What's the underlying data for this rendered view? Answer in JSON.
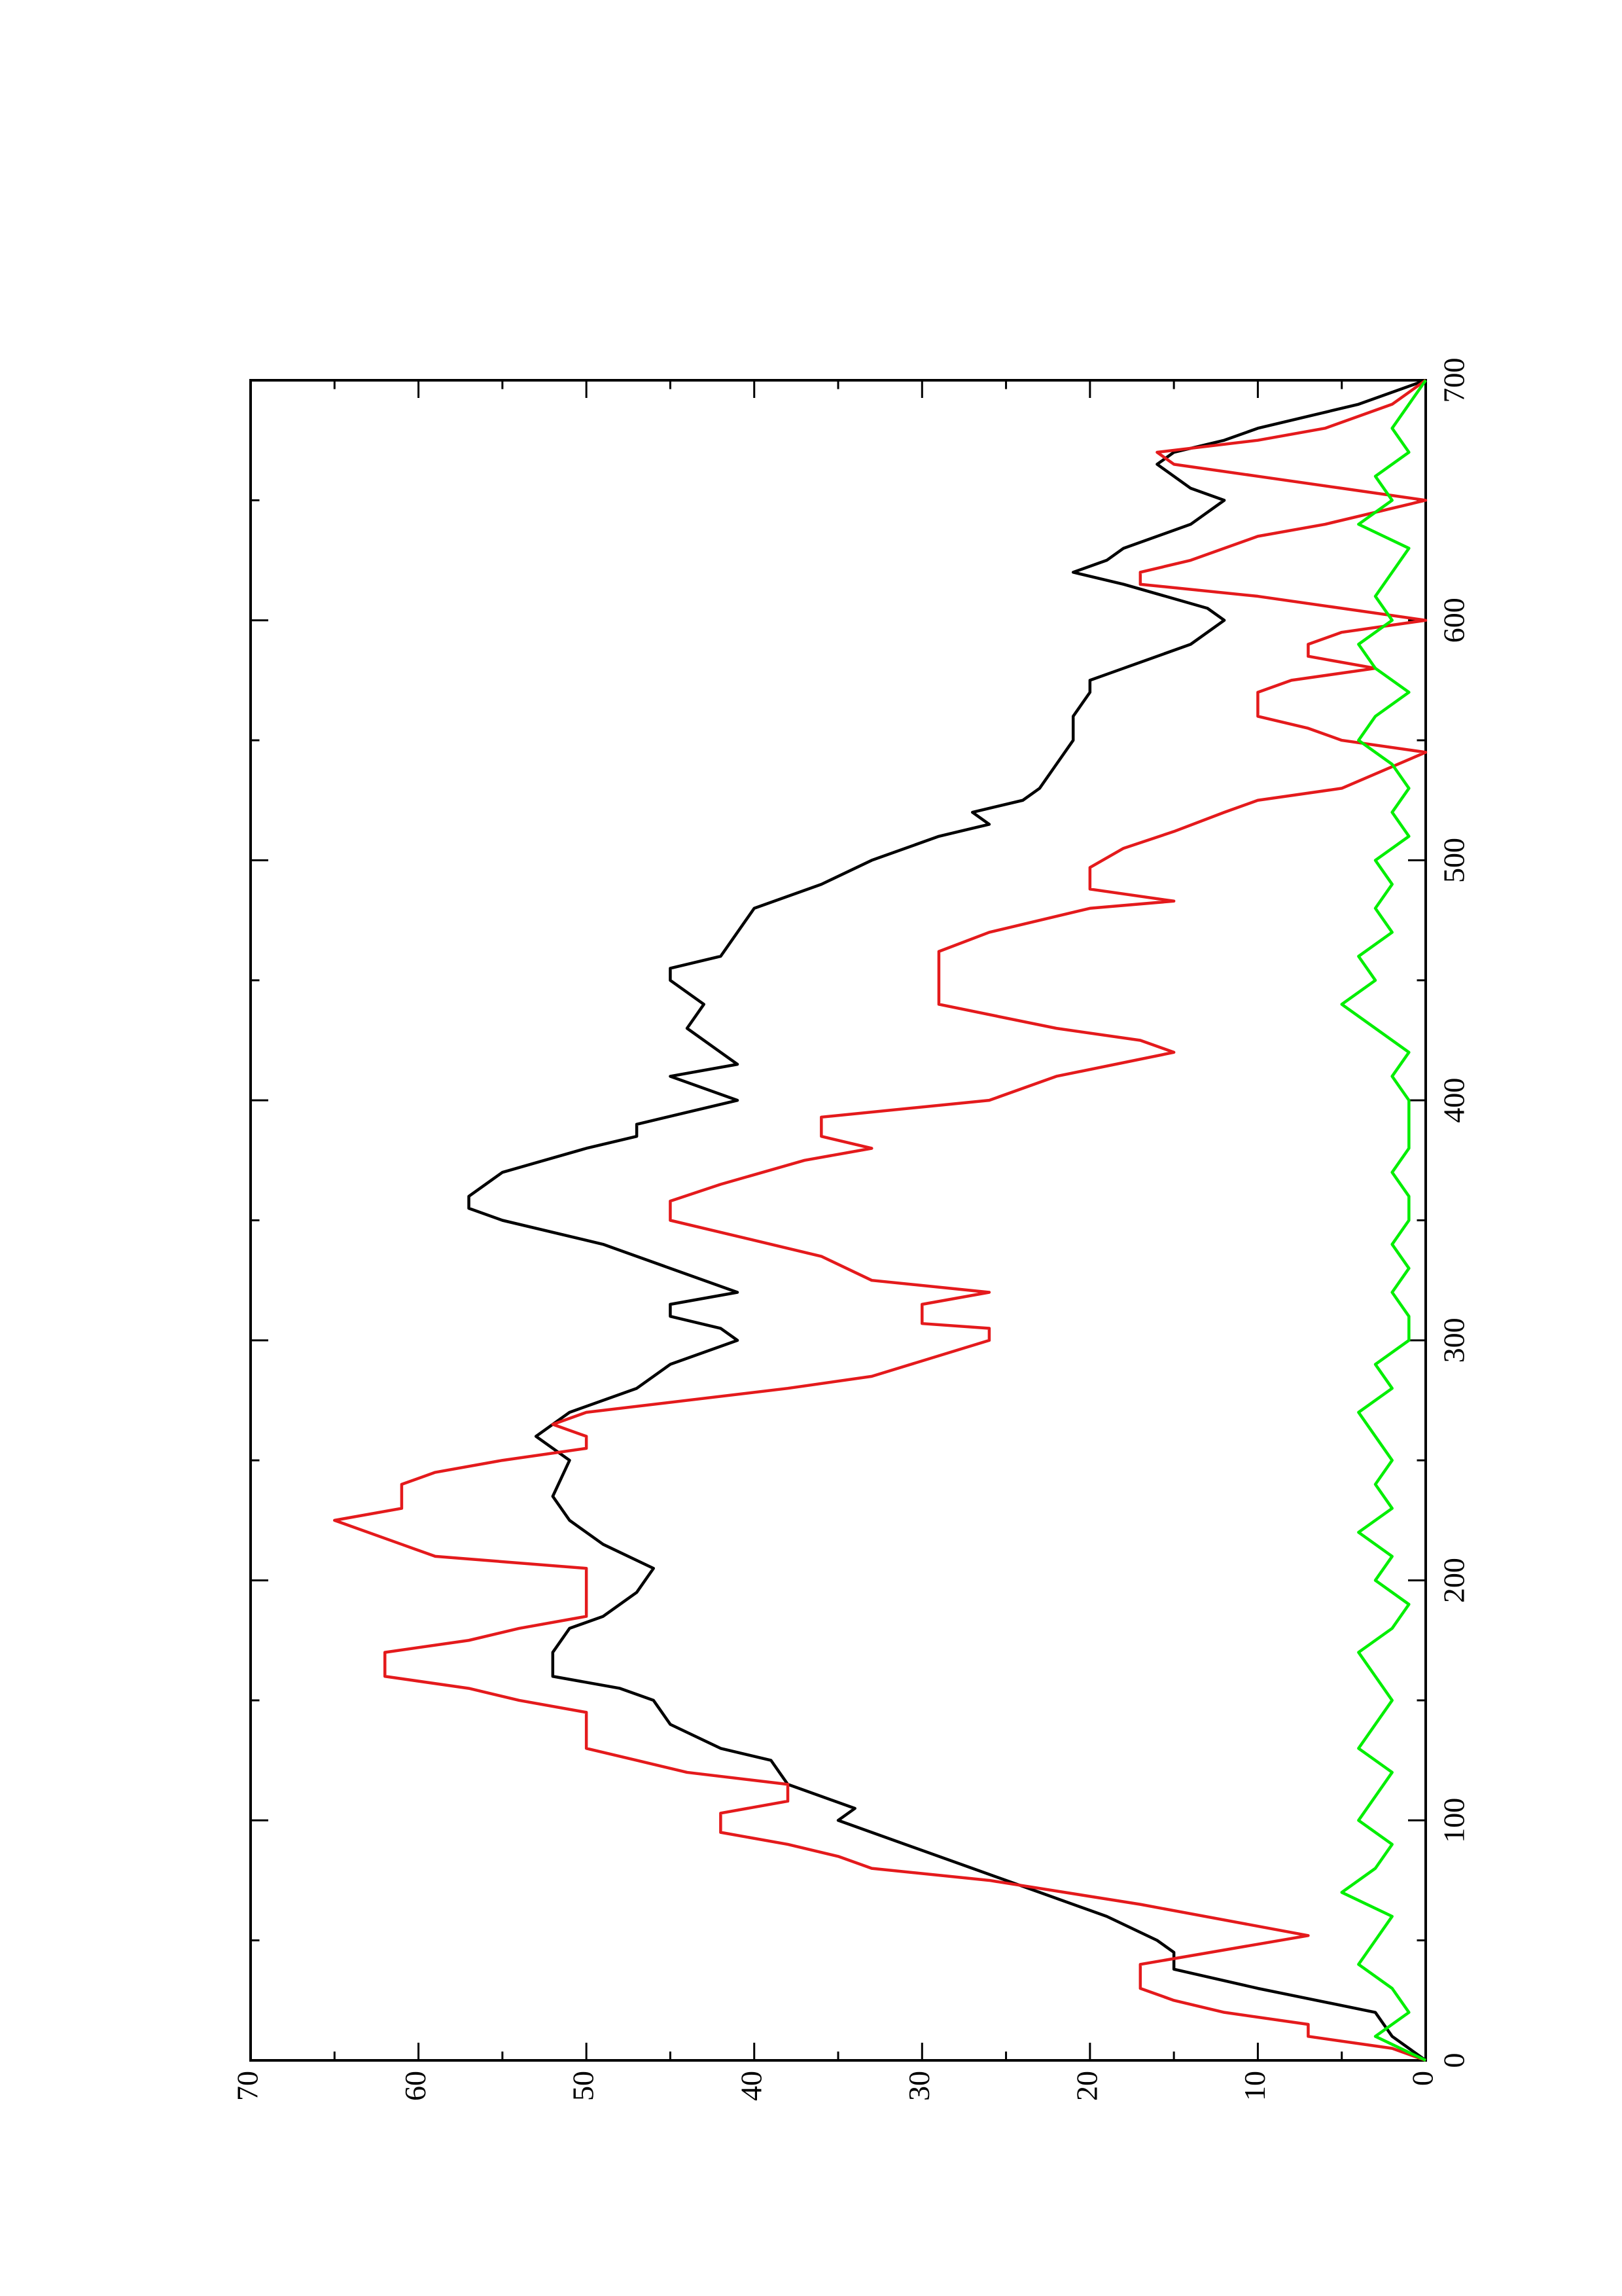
{
  "chart_data": {
    "type": "line",
    "xlim": [
      0,
      700
    ],
    "xticks": [
      0,
      100,
      200,
      300,
      400,
      500,
      600,
      700
    ],
    "ylim": [
      0,
      70
    ],
    "yticks": [
      0,
      10,
      20,
      30,
      40,
      50,
      60,
      70
    ],
    "series": [
      {
        "color": "#000000",
        "x": [
          0,
          10,
          20,
          30,
          38,
          45,
          50,
          60,
          70,
          80,
          90,
          95,
          100,
          105,
          110,
          115,
          125,
          130,
          140,
          150,
          155,
          160,
          170,
          180,
          185,
          190,
          195,
          205,
          215,
          225,
          235,
          250,
          260,
          265,
          270,
          280,
          290,
          300,
          305,
          310,
          315,
          320,
          330,
          340,
          350,
          355,
          360,
          365,
          370,
          380,
          385,
          390,
          395,
          400,
          410,
          415,
          420,
          430,
          440,
          450,
          455,
          460,
          470,
          480,
          490,
          500,
          510,
          515,
          520,
          525,
          530,
          540,
          550,
          560,
          570,
          575,
          580,
          590,
          600,
          605,
          615,
          620,
          625,
          630,
          640,
          645,
          650,
          655,
          665,
          670,
          675,
          680,
          690,
          700
        ],
        "values": [
          0,
          2,
          3,
          10,
          15,
          15,
          16,
          19,
          23,
          27,
          31,
          33,
          35,
          34,
          36,
          38,
          39,
          42,
          45,
          46,
          48,
          52,
          52,
          51,
          49,
          48,
          47,
          46,
          49,
          51,
          52,
          51,
          53,
          52,
          51,
          47,
          45,
          41,
          42,
          45,
          45,
          41,
          45,
          49,
          55,
          57,
          57,
          56,
          55,
          50,
          47,
          47,
          44,
          41,
          45,
          41,
          42,
          44,
          43,
          45,
          45,
          42,
          41,
          40,
          36,
          33,
          29,
          26,
          27,
          24,
          23,
          22,
          21,
          21,
          20,
          20,
          18,
          14,
          12,
          13,
          18,
          21,
          19,
          18,
          14,
          13,
          12,
          14,
          16,
          15,
          12,
          10,
          4,
          0
        ]
      },
      {
        "color": "#e41a1c",
        "x": [
          0,
          5,
          10,
          15,
          20,
          25,
          30,
          40,
          52,
          65,
          75,
          80,
          85,
          90,
          95,
          103,
          108,
          115,
          120,
          125,
          130,
          145,
          150,
          155,
          160,
          170,
          175,
          180,
          185,
          205,
          210,
          215,
          225,
          230,
          240,
          245,
          250,
          255,
          260,
          265,
          270,
          280,
          285,
          300,
          305,
          307,
          315,
          320,
          325,
          335,
          345,
          350,
          358,
          365,
          375,
          380,
          385,
          393,
          400,
          410,
          420,
          425,
          430,
          440,
          462,
          470,
          480,
          483,
          488,
          497,
          505,
          512,
          520,
          525,
          530,
          545,
          550,
          555,
          560,
          570,
          575,
          580,
          585,
          590,
          595,
          600,
          605,
          610,
          615,
          620,
          625,
          635,
          640,
          650,
          655,
          660,
          665,
          670,
          675,
          680,
          690,
          700
        ],
        "values": [
          0,
          2,
          7,
          7,
          12,
          15,
          17,
          17,
          7,
          17,
          26,
          33,
          35,
          38,
          42,
          42,
          38,
          38,
          44,
          47,
          50,
          50,
          54,
          57,
          62,
          62,
          57,
          54,
          50,
          50,
          59,
          61,
          65,
          61,
          61,
          59,
          55,
          50,
          50,
          52,
          50,
          38,
          33,
          26,
          26,
          30,
          30,
          26,
          33,
          36,
          42,
          45,
          45,
          42,
          37,
          33,
          36,
          36,
          26,
          22,
          15,
          17,
          22,
          29,
          29,
          26,
          20,
          15,
          20,
          20,
          18,
          15,
          12,
          10,
          5,
          0,
          5,
          7,
          10,
          10,
          8,
          3,
          7,
          7,
          5,
          0,
          5,
          10,
          17,
          17,
          14,
          10,
          6,
          0,
          5,
          10,
          15,
          16,
          10,
          6,
          2,
          0
        ]
      },
      {
        "color": "#00ee00",
        "x": [
          0,
          10,
          20,
          30,
          40,
          50,
          60,
          70,
          80,
          90,
          100,
          110,
          120,
          130,
          140,
          150,
          160,
          170,
          180,
          190,
          200,
          210,
          220,
          230,
          240,
          250,
          260,
          270,
          280,
          290,
          300,
          310,
          320,
          330,
          340,
          350,
          360,
          370,
          380,
          390,
          400,
          410,
          420,
          430,
          440,
          450,
          460,
          470,
          480,
          490,
          500,
          510,
          520,
          530,
          540,
          550,
          560,
          570,
          580,
          590,
          600,
          610,
          620,
          630,
          640,
          650,
          660,
          670,
          680,
          690,
          700
        ],
        "values": [
          0,
          3,
          1,
          2,
          4,
          3,
          2,
          5,
          3,
          2,
          4,
          3,
          2,
          4,
          3,
          2,
          3,
          4,
          2,
          1,
          3,
          2,
          4,
          2,
          3,
          2,
          3,
          4,
          2,
          3,
          1,
          1,
          2,
          1,
          2,
          1,
          1,
          2,
          1,
          1,
          1,
          2,
          1,
          3,
          5,
          3,
          4,
          2,
          3,
          2,
          3,
          1,
          2,
          1,
          2,
          4,
          3,
          1,
          3,
          4,
          2,
          3,
          2,
          1,
          4,
          2,
          3,
          1,
          2,
          1,
          0
        ]
      }
    ]
  }
}
